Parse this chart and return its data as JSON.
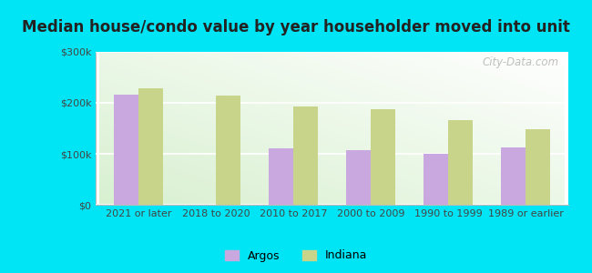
{
  "title": "Median house/condo value by year householder moved into unit",
  "categories": [
    "2021 or later",
    "2018 to 2020",
    "2010 to 2017",
    "2000 to 2009",
    "1990 to 1999",
    "1989 or earlier"
  ],
  "argos_values": [
    215000,
    0,
    110000,
    107000,
    100000,
    112000
  ],
  "indiana_values": [
    228000,
    213000,
    193000,
    187000,
    165000,
    148000
  ],
  "argos_color": "#c9a8e0",
  "indiana_color": "#c8d48a",
  "background_outer": "#00e5f5",
  "ylim": [
    0,
    300000
  ],
  "yticks": [
    0,
    100000,
    200000,
    300000
  ],
  "ytick_labels": [
    "$0",
    "$100k",
    "$200k",
    "$300k"
  ],
  "bar_width": 0.32,
  "legend_labels": [
    "Argos",
    "Indiana"
  ],
  "watermark": "City-Data.com",
  "title_fontsize": 12,
  "tick_fontsize": 8,
  "legend_fontsize": 9
}
